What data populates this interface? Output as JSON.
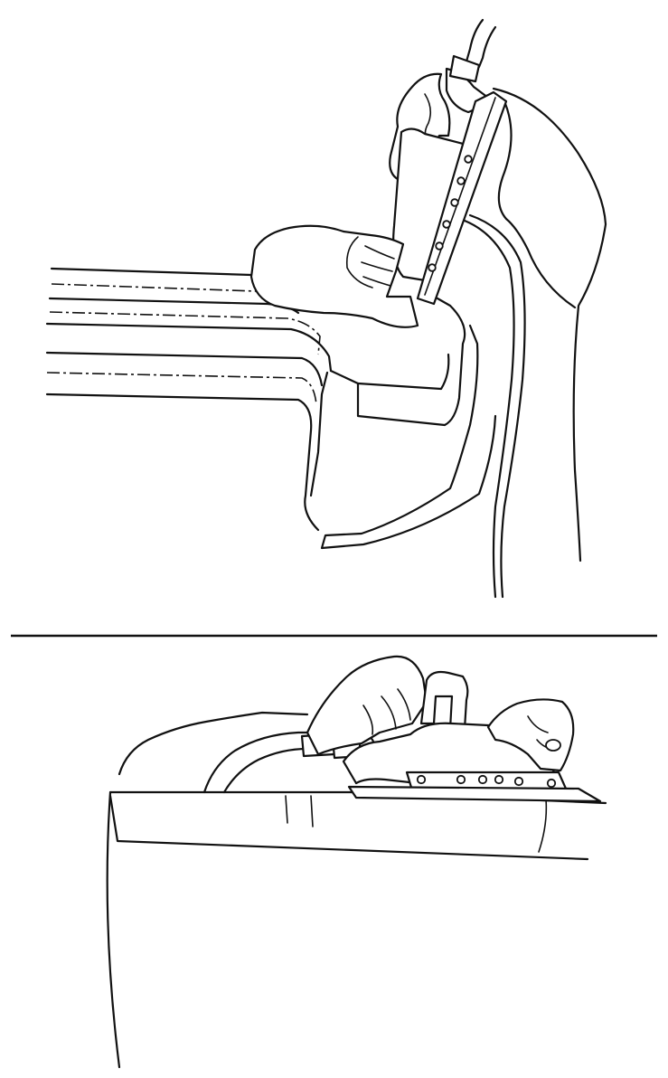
{
  "illustration": {
    "kind": "line-drawing",
    "panels": [
      "upper-vertical-sanding-of-panel-flange",
      "lower-horizontal-sanding-of-panel-top"
    ],
    "colors": {
      "line": "#111111",
      "background": "#ffffff"
    }
  }
}
